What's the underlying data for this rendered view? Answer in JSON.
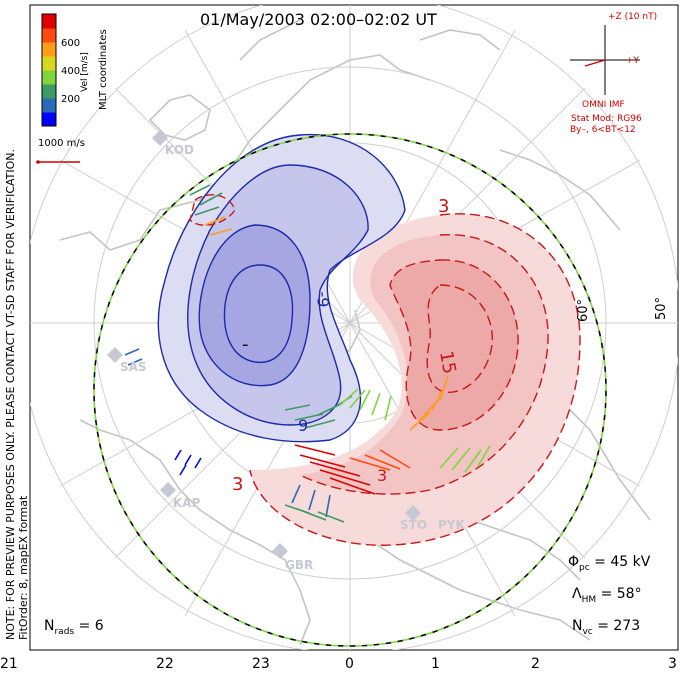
{
  "title": "01/May/2003 02:00–02:02 UT",
  "colorbar": {
    "label": "Vel [m/s]",
    "ticks": [
      "600",
      "400",
      "200"
    ],
    "colors": [
      "#0000ff",
      "#2a6ab8",
      "#3c9a64",
      "#7ed63c",
      "#d8d820",
      "#ff9c18",
      "#ff4a10",
      "#e00000"
    ]
  },
  "mlt_label": "MLT coordinates",
  "ref_vector": "1000 m/s",
  "imf": {
    "z_label": "+Z (10 nT)",
    "y_label": "+Y",
    "source": "OMNI IMF",
    "model_line1": "Stat Mod: RG96",
    "model_line2": "By–, 6<BT<12"
  },
  "note_line1": "NOTE: FOR PREVIEW PURPOSES ONLY. PLEASE CONTACT VT-SD STAFF FOR VERIFICATION.",
  "note_line2": "FitOrder: 8, mapEX format",
  "lat_labels": [
    "60°",
    "50°"
  ],
  "stats": {
    "phi_pc": {
      "label": "Φ",
      "sub": "pc",
      "value": "= 45 kV"
    },
    "lambda_hm": {
      "label": "Λ",
      "sub": "HM",
      "value": "= 58°"
    },
    "n_vc": {
      "label": "N",
      "sub": "vc",
      "value": "= 273"
    },
    "n_rads": {
      "label": "N",
      "sub": "rads",
      "value": "= 6"
    }
  },
  "mlt_ticks": [
    "21",
    "22",
    "23",
    "0",
    "1",
    "2",
    "3"
  ],
  "contour_labels": [
    "-9",
    "9",
    "3",
    "15",
    "3",
    "-",
    "3"
  ],
  "stations": [
    "KOD",
    "SAS",
    "KAP",
    "GBR",
    "STO",
    "PYK"
  ],
  "colors": {
    "negative": "#1c2aa8",
    "positive": "#c81818",
    "imf": "#d00000",
    "hm_boundary": "#7cd840"
  }
}
